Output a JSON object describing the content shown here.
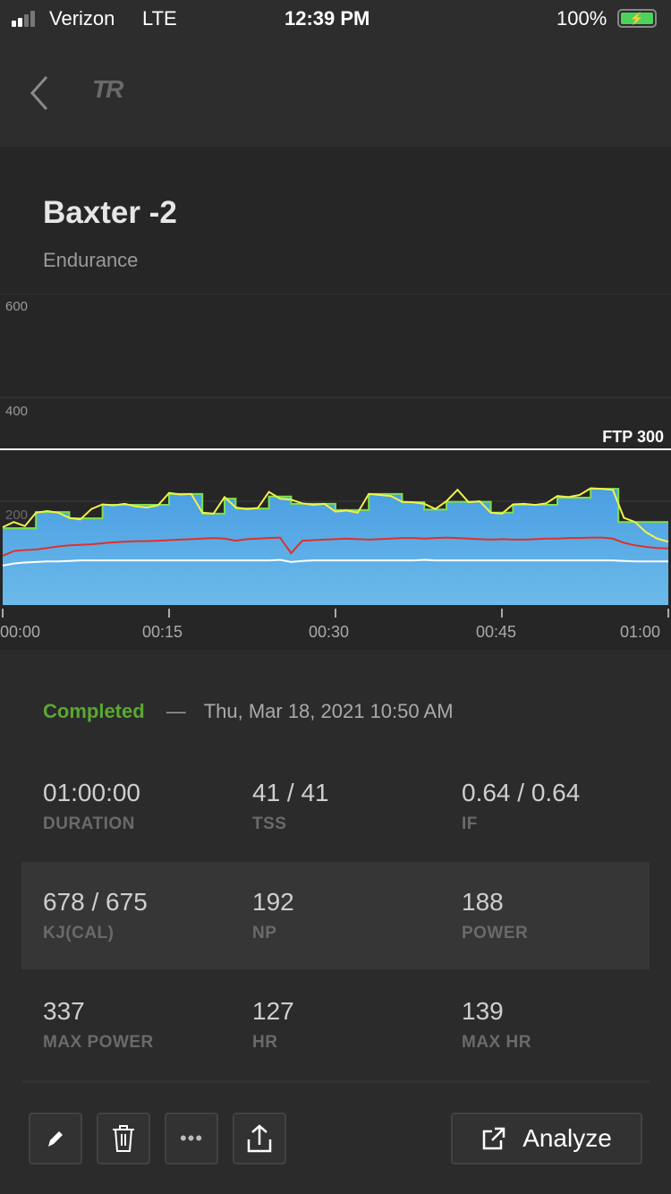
{
  "status_bar": {
    "carrier": "Verizon",
    "network": "LTE",
    "time": "12:39 PM",
    "battery": "100%"
  },
  "nav": {
    "logo": "TR"
  },
  "workout": {
    "title": "Baxter -2",
    "category": "Endurance"
  },
  "chart_data": {
    "type": "area",
    "y_ticks": [
      "600",
      "400",
      "200"
    ],
    "ylim": [
      0,
      650
    ],
    "ftp_label": "FTP 300",
    "ftp": 300,
    "x_ticks": [
      "00:00",
      "00:15",
      "00:30",
      "00:45",
      "01:00"
    ],
    "xlim_minutes": [
      0,
      60
    ],
    "target_segments": [
      [
        0,
        3,
        148
      ],
      [
        3,
        6,
        179
      ],
      [
        6,
        9,
        167
      ],
      [
        9,
        15,
        193
      ],
      [
        15,
        18,
        214
      ],
      [
        18,
        20,
        176
      ],
      [
        20,
        21,
        205
      ],
      [
        21,
        24,
        186
      ],
      [
        24,
        26,
        209
      ],
      [
        26,
        30,
        195
      ],
      [
        30,
        33,
        183
      ],
      [
        33,
        36,
        214
      ],
      [
        36,
        38,
        198
      ],
      [
        38,
        40,
        184
      ],
      [
        40,
        44,
        199
      ],
      [
        44,
        46,
        178
      ],
      [
        46,
        50,
        193
      ],
      [
        50,
        53,
        207
      ],
      [
        53,
        55.5,
        224
      ],
      [
        55.5,
        60,
        160
      ]
    ],
    "series": [
      {
        "name": "power",
        "color": "#f2f24a",
        "values": [
          150,
          160,
          152,
          178,
          181,
          178,
          168,
          165,
          185,
          194,
          192,
          195,
          190,
          188,
          192,
          216,
          213,
          214,
          178,
          176,
          208,
          188,
          185,
          187,
          218,
          205,
          203,
          196,
          193,
          195,
          180,
          182,
          178,
          214,
          212,
          210,
          199,
          198,
          195,
          185,
          200,
          222,
          198,
          200,
          178,
          176,
          194,
          195,
          193,
          196,
          210,
          208,
          212,
          225,
          224,
          222,
          168,
          160,
          140,
          128,
          122
        ]
      },
      {
        "name": "heart-rate",
        "color": "#e0302a",
        "values": [
          95,
          104,
          106,
          107,
          110,
          113,
          115,
          116,
          117,
          119,
          121,
          122,
          123,
          123,
          124,
          125,
          126,
          127,
          128,
          129,
          128,
          124,
          127,
          128,
          129,
          130,
          100,
          124,
          125,
          126,
          127,
          128,
          127,
          126,
          127,
          128,
          129,
          129,
          128,
          129,
          130,
          129,
          128,
          127,
          126,
          127,
          126,
          126,
          127,
          128,
          128,
          129,
          129,
          130,
          130,
          128,
          120,
          115,
          112,
          110,
          109
        ]
      },
      {
        "name": "cadence",
        "color": "#ffffff",
        "values": [
          76,
          80,
          82,
          83,
          84,
          84,
          85,
          86,
          86,
          86,
          86,
          86,
          86,
          86,
          86,
          86,
          86,
          86,
          86,
          86,
          86,
          86,
          86,
          86,
          86,
          87,
          83,
          85,
          86,
          86,
          86,
          86,
          86,
          86,
          86,
          86,
          86,
          86,
          87,
          86,
          86,
          86,
          86,
          86,
          86,
          86,
          86,
          86,
          86,
          86,
          86,
          86,
          86,
          86,
          86,
          86,
          85,
          84,
          84,
          84,
          84
        ]
      }
    ]
  },
  "summary": {
    "status": "Completed",
    "separator": "—",
    "date": "Thu, Mar 18, 2021 10:50 AM"
  },
  "stats": [
    {
      "value": "01:00:00",
      "label": "DURATION"
    },
    {
      "value": "41 / 41",
      "label": "TSS"
    },
    {
      "value": "0.64 / 0.64",
      "label": "IF"
    },
    {
      "value": "678 / 675",
      "label": "KJ(CAL)"
    },
    {
      "value": "192",
      "label": "NP"
    },
    {
      "value": "188",
      "label": "POWER"
    },
    {
      "value": "337",
      "label": "MAX POWER"
    },
    {
      "value": "127",
      "label": "HR"
    },
    {
      "value": "139",
      "label": "MAX HR"
    }
  ],
  "actions": {
    "analyze": "Analyze"
  },
  "colors": {
    "completed": "#5aa832",
    "area_top": "#4a9fe2",
    "area_bottom": "#6cbaea",
    "target": "#7ee04a"
  }
}
